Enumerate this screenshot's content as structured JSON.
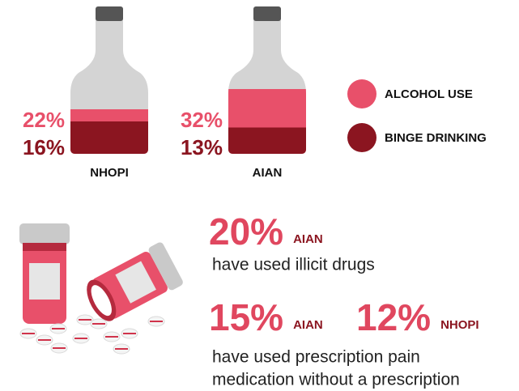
{
  "colors": {
    "alcohol_use": "#e8506a",
    "binge_drinking": "#8b1520"
  },
  "bottles": [
    {
      "group": "NHOPI",
      "alcohol_use": {
        "value": 22,
        "label": "22%"
      },
      "binge_drinking": {
        "value": 16,
        "label": "16%"
      }
    },
    {
      "group": "AIAN",
      "alcohol_use": {
        "value": 32,
        "label": "32%"
      },
      "binge_drinking": {
        "value": 13,
        "label": "13%"
      }
    }
  ],
  "legend": {
    "alcohol_use": "ALCOHOL USE",
    "binge_drinking": "BINGE DRINKING"
  },
  "stats": [
    {
      "figures": [
        {
          "value": {
            "value": 20,
            "label": "20%"
          },
          "group": "AIAN"
        }
      ],
      "text": [
        "have used illicit drugs"
      ]
    },
    {
      "figures": [
        {
          "value": {
            "value": 15,
            "label": "15%"
          },
          "group": "AIAN"
        },
        {
          "value": {
            "value": 12,
            "label": "12%"
          },
          "group": "NHOPI"
        }
      ],
      "text": [
        "have used prescription pain",
        "medication without a prescription"
      ]
    }
  ]
}
